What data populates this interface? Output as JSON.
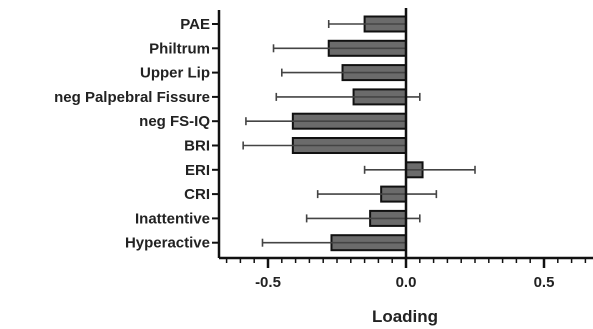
{
  "chart_data": {
    "type": "bar",
    "orientation": "horizontal",
    "categories": [
      "PAE",
      "Philtrum",
      "Upper Lip",
      "neg Palpebral Fissure",
      "neg FS-IQ",
      "BRI",
      "ERI",
      "CRI",
      "Inattentive",
      "Hyperactive"
    ],
    "values": [
      -0.15,
      -0.28,
      -0.23,
      -0.19,
      -0.41,
      -0.41,
      0.06,
      -0.09,
      -0.13,
      -0.27
    ],
    "error_low": [
      -0.28,
      -0.48,
      -0.45,
      -0.47,
      -0.58,
      -0.59,
      -0.15,
      -0.32,
      -0.36,
      -0.52
    ],
    "error_high": [
      0.0,
      0.0,
      0.0,
      0.05,
      0.0,
      0.0,
      0.25,
      0.11,
      0.05,
      0.0
    ],
    "xlabel": "Loading",
    "ylabel": "",
    "xlim": [
      -0.65,
      0.68
    ],
    "xticks": [
      "-0.5",
      "0.0",
      "0.5"
    ],
    "xtick_values": [
      -0.5,
      0.0,
      0.5
    ],
    "minor_tick_step": 0.05,
    "grid": false,
    "bar_color": "#6b6b6b",
    "bar_edge_color": "#111111",
    "axis_color": "#111111"
  }
}
